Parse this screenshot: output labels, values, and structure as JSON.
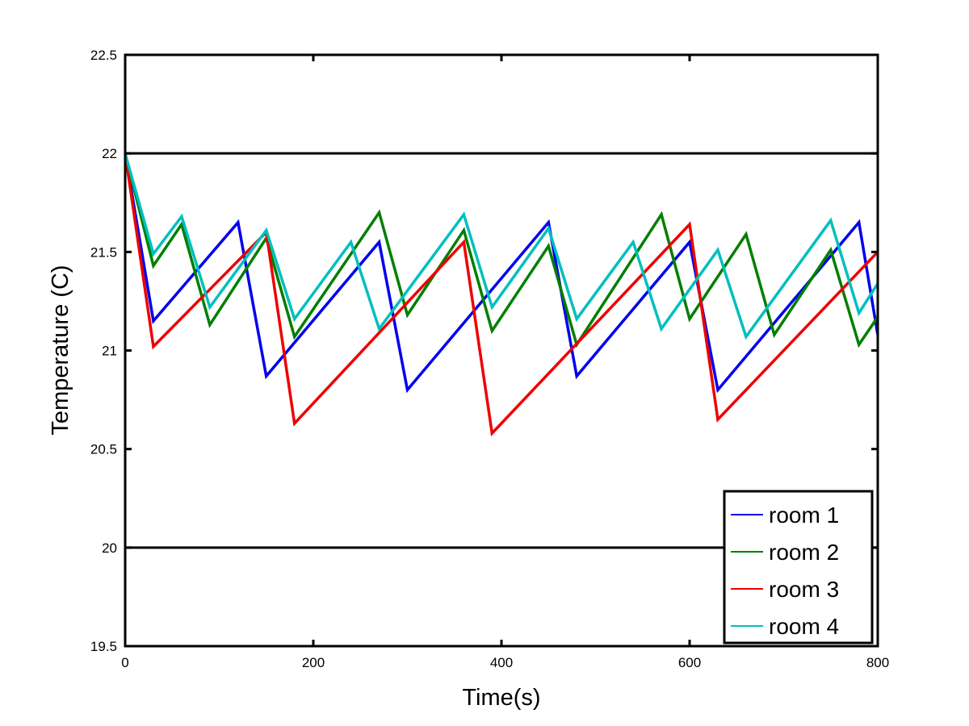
{
  "chart_data": {
    "type": "line",
    "xlabel": "Time(s)",
    "ylabel": "Temperature (C)",
    "xlim": [
      0,
      800
    ],
    "ylim": [
      19.5,
      22.5
    ],
    "xticks": [
      0,
      200,
      400,
      600,
      800
    ],
    "yticks": [
      19.5,
      20,
      20.5,
      21,
      21.5,
      22,
      22.5
    ],
    "xtick_labels": [
      "0",
      "200",
      "400",
      "600",
      "800"
    ],
    "ytick_labels": [
      "19.5",
      "20",
      "20.5",
      "21",
      "21.5",
      "22",
      "22.5"
    ],
    "grid": false,
    "legend_position": "bottom-right",
    "reference_lines": [
      {
        "y": 22,
        "color": "#000000"
      },
      {
        "y": 20,
        "color": "#000000"
      }
    ],
    "series": [
      {
        "name": "room 1",
        "color": "#0000ee",
        "x": [
          0,
          30,
          120,
          150,
          270,
          300,
          450,
          480,
          600,
          630,
          780,
          800
        ],
        "y": [
          22.0,
          21.15,
          21.65,
          20.87,
          21.55,
          20.8,
          21.65,
          20.87,
          21.55,
          20.8,
          21.65,
          21.08
        ]
      },
      {
        "name": "room 2",
        "color": "#007f00",
        "x": [
          0,
          30,
          60,
          90,
          150,
          180,
          270,
          300,
          360,
          390,
          450,
          480,
          570,
          600,
          660,
          690,
          750,
          780,
          800
        ],
        "y": [
          22.0,
          21.43,
          21.64,
          21.13,
          21.57,
          21.07,
          21.7,
          21.18,
          21.61,
          21.1,
          21.53,
          21.03,
          21.69,
          21.16,
          21.59,
          21.08,
          21.51,
          21.03,
          21.17
        ]
      },
      {
        "name": "room 3",
        "color": "#ee0000",
        "x": [
          0,
          30,
          150,
          180,
          360,
          390,
          600,
          630,
          800
        ],
        "y": [
          22.0,
          21.02,
          21.6,
          20.63,
          21.55,
          20.58,
          21.64,
          20.65,
          21.5
        ]
      },
      {
        "name": "room 4",
        "color": "#00bfbf",
        "x": [
          0,
          30,
          60,
          90,
          150,
          180,
          240,
          270,
          360,
          390,
          450,
          480,
          540,
          570,
          630,
          660,
          750,
          780,
          800
        ],
        "y": [
          22.0,
          21.49,
          21.68,
          21.22,
          21.61,
          21.16,
          21.55,
          21.11,
          21.69,
          21.22,
          21.62,
          21.16,
          21.55,
          21.11,
          21.51,
          21.07,
          21.66,
          21.19,
          21.34
        ]
      }
    ]
  }
}
